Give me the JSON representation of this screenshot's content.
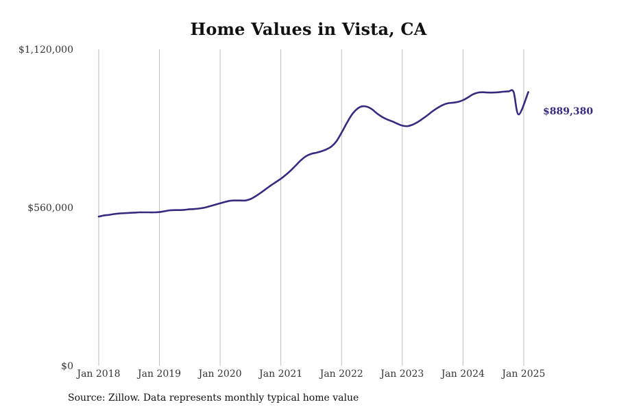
{
  "chart_data": {
    "type": "line",
    "title": "Home Values in Vista, CA",
    "xlabel": "",
    "ylabel": "",
    "ylim": [
      0,
      1120000
    ],
    "y_tick_labels": [
      "$0",
      "$560,000",
      "$1,120,000"
    ],
    "y_ticks": [
      0,
      560000,
      1120000
    ],
    "x_tick_labels": [
      "Jan 2018",
      "Jan 2019",
      "Jan 2020",
      "Jan 2021",
      "Jan 2022",
      "Jan 2023",
      "Jan 2024",
      "Jan 2025"
    ],
    "x_ticks": [
      "2018-01",
      "2019-01",
      "2020-01",
      "2021-01",
      "2022-01",
      "2023-01",
      "2024-01",
      "2025-01"
    ],
    "grid": "vertical",
    "line_color": "#342a7f",
    "series": [
      {
        "x": [
          "2018-01",
          "2018-02",
          "2018-03",
          "2018-04",
          "2018-05",
          "2018-06",
          "2018-07",
          "2018-08",
          "2018-09",
          "2018-10",
          "2018-11",
          "2018-12",
          "2019-01",
          "2019-02",
          "2019-03",
          "2019-04",
          "2019-05",
          "2019-06",
          "2019-07",
          "2019-08",
          "2019-09",
          "2019-10",
          "2019-11",
          "2019-12",
          "2020-01",
          "2020-02",
          "2020-03",
          "2020-04",
          "2020-05",
          "2020-06",
          "2020-07",
          "2020-08",
          "2020-09",
          "2020-10",
          "2020-11",
          "2020-12",
          "2021-01",
          "2021-02",
          "2021-03",
          "2021-04",
          "2021-05",
          "2021-06",
          "2021-07",
          "2021-08",
          "2021-09",
          "2021-10",
          "2021-11",
          "2021-12",
          "2022-01",
          "2022-02",
          "2022-03",
          "2022-04",
          "2022-05",
          "2022-06",
          "2022-07",
          "2022-08",
          "2022-09",
          "2022-10",
          "2022-11",
          "2022-12",
          "2023-01",
          "2023-02",
          "2023-03",
          "2023-04",
          "2023-05",
          "2023-06",
          "2023-07",
          "2023-08",
          "2023-09",
          "2023-10",
          "2023-11",
          "2023-12",
          "2024-01",
          "2024-02",
          "2024-03",
          "2024-04",
          "2024-05",
          "2024-06",
          "2024-07",
          "2024-08",
          "2024-09",
          "2024-10",
          "2024-11",
          "2024-12",
          "2025-01",
          "2025-02",
          "2025-03"
        ],
        "values": [
          528000,
          532000,
          534000,
          537000,
          539000,
          540000,
          541000,
          542000,
          543000,
          543000,
          543000,
          543000,
          544000,
          547000,
          550000,
          551000,
          551000,
          552000,
          554000,
          555000,
          557000,
          560000,
          565000,
          570000,
          575000,
          580000,
          584000,
          585000,
          585000,
          585000,
          590000,
          600000,
          612000,
          625000,
          638000,
          650000,
          662000,
          676000,
          692000,
          710000,
          728000,
          742000,
          750000,
          754000,
          759000,
          766000,
          776000,
          795000,
          825000,
          858000,
          888000,
          908000,
          918000,
          917000,
          908000,
          893000,
          881000,
          872000,
          865000,
          857000,
          850000,
          848000,
          853000,
          862000,
          874000,
          887000,
          901000,
          913000,
          923000,
          929000,
          931000,
          934000,
          940000,
          950000,
          961000,
          967000,
          968000,
          967000,
          967000,
          968000,
          970000,
          971000,
          969000,
          889380,
          889380,
          889380,
          889380
        ],
        "end_value_label": "$889,380"
      }
    ]
  },
  "footer": {
    "source": "Source: Zillow. Data represents monthly typical home value"
  }
}
